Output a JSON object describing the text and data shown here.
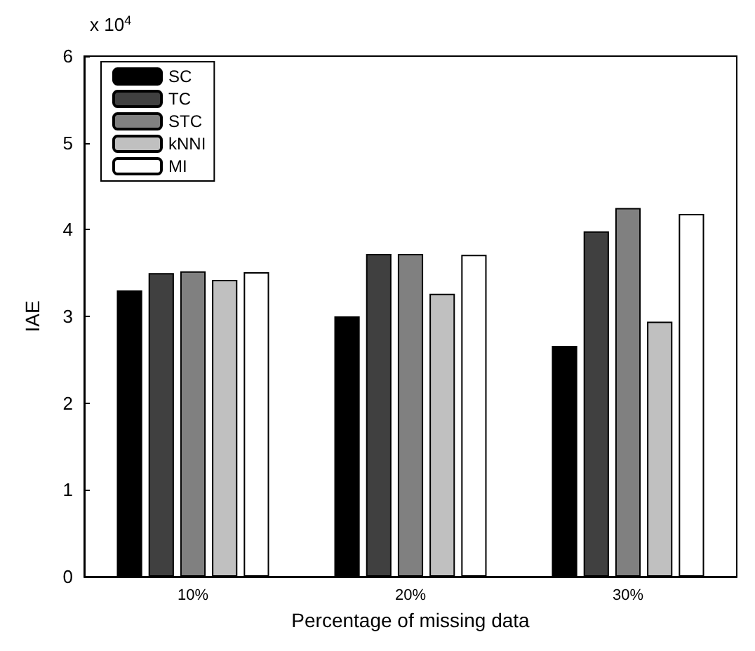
{
  "chart_data": {
    "type": "bar",
    "xlabel": "Percentage of missing data",
    "ylabel": "IAE",
    "annotations": [
      "x 10$^{4}$"
    ],
    "categories": [
      "10%",
      "20%",
      "30%"
    ],
    "series": [
      {
        "name": "SC",
        "color": "#000000",
        "values": [
          3.3,
          3.0,
          2.66
        ]
      },
      {
        "name": "TC",
        "color": "#404040",
        "values": [
          3.5,
          3.72,
          3.98
        ]
      },
      {
        "name": "STC",
        "color": "#808080",
        "values": [
          3.52,
          3.72,
          4.25
        ]
      },
      {
        "name": "kNNI",
        "color": "#c0c0c0",
        "values": [
          3.42,
          3.26,
          2.94
        ]
      },
      {
        "name": "MI",
        "color": "#ffffff",
        "values": [
          3.51,
          3.71,
          4.18
        ]
      }
    ],
    "ylim": [
      0,
      6
    ],
    "yticks": [
      0,
      1,
      2,
      3,
      4,
      5,
      6
    ],
    "grid": false,
    "legend": "top left"
  }
}
